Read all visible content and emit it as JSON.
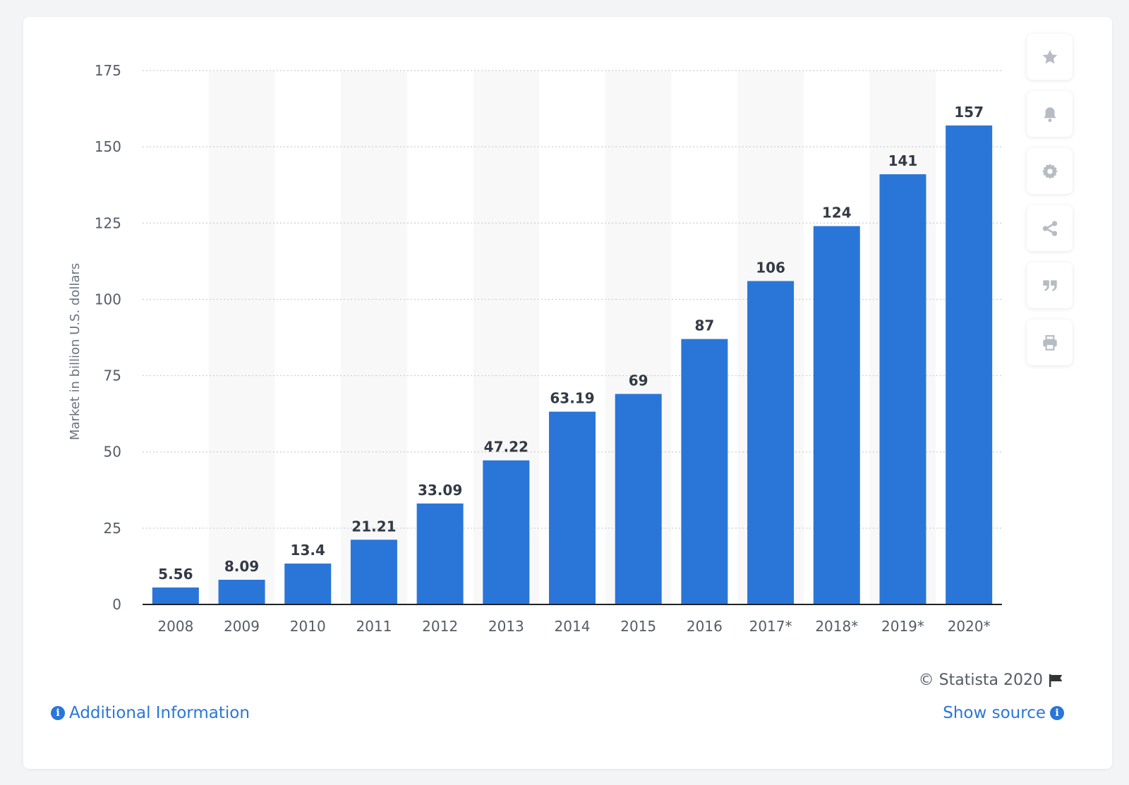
{
  "chart_data": {
    "type": "bar",
    "categories": [
      "2008",
      "2009",
      "2010",
      "2011",
      "2012",
      "2013",
      "2014",
      "2015",
      "2016",
      "2017*",
      "2018*",
      "2019*",
      "2020*"
    ],
    "values": [
      5.56,
      8.09,
      13.4,
      21.21,
      33.09,
      47.22,
      63.19,
      69,
      87,
      106,
      124,
      141,
      157
    ],
    "value_labels": [
      "5.56",
      "8.09",
      "13.4",
      "21.21",
      "33.09",
      "47.22",
      "63.19",
      "69",
      "87",
      "106",
      "124",
      "141",
      "157"
    ],
    "ylabel": "Market in billion U.S. dollars",
    "xlabel": "",
    "ylim": [
      0,
      175
    ],
    "yticks": [
      "0",
      "25",
      "50",
      "75",
      "100",
      "125",
      "150",
      "175"
    ],
    "grid": "horizontal dotted",
    "bar_color": "#2a76d8"
  },
  "toolbar": {
    "items": [
      {
        "icon": "star-icon"
      },
      {
        "icon": "bell-icon"
      },
      {
        "icon": "gear-icon"
      },
      {
        "icon": "share-icon"
      },
      {
        "icon": "quote-icon"
      },
      {
        "icon": "print-icon"
      }
    ]
  },
  "footer": {
    "copyright": "© Statista 2020",
    "additional_info": "Additional Information",
    "show_source": "Show source"
  },
  "colors": {
    "accent": "#2a76d8",
    "icon": "#b7bcc4"
  }
}
